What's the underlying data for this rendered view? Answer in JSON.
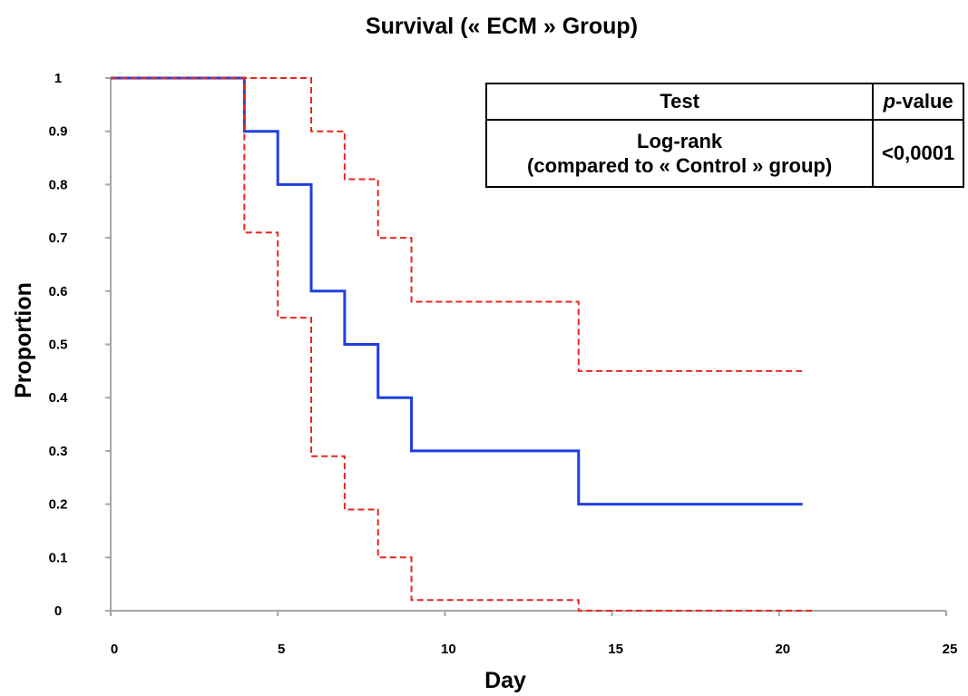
{
  "chart_data": {
    "type": "line",
    "title": "Survival (« ECM » Group)",
    "xlabel": "Day",
    "ylabel": "Proportion",
    "xlim": [
      0,
      25
    ],
    "ylim": [
      0,
      1
    ],
    "x_ticks": [
      0,
      5,
      10,
      15,
      20,
      25
    ],
    "y_ticks": [
      0,
      0.1,
      0.2,
      0.3,
      0.4,
      0.5,
      0.6,
      0.7,
      0.8,
      0.9,
      1
    ],
    "x_tick_labels": [
      "0",
      "5",
      "10",
      "15",
      "20",
      "25"
    ],
    "y_tick_labels": [
      "0",
      "0.1",
      "0.2",
      "0.3",
      "0.4",
      "0.5",
      "0.6",
      "0.7",
      "0.8",
      "0.9",
      "1"
    ],
    "grid": false,
    "series": [
      {
        "style": "step-solid",
        "color": "#1f3fe0",
        "x": [
          0,
          4,
          5,
          6,
          7,
          8,
          9,
          14,
          20.7
        ],
        "y": [
          1,
          0.9,
          0.8,
          0.6,
          0.5,
          0.4,
          0.3,
          0.2,
          0.2
        ]
      },
      {
        "style": "step-dashed",
        "color": "#e8261e",
        "x": [
          0,
          6,
          7,
          8,
          9,
          14,
          20.7
        ],
        "y": [
          1,
          0.9,
          0.81,
          0.7,
          0.58,
          0.45,
          0.45
        ]
      },
      {
        "style": "step-dashed",
        "color": "#e8261e",
        "x": [
          0,
          4,
          5,
          6,
          7,
          8,
          9,
          14,
          21.1
        ],
        "y": [
          1,
          0.71,
          0.55,
          0.29,
          0.19,
          0.1,
          0.02,
          0,
          0
        ]
      }
    ]
  },
  "table": {
    "header_test": "Test",
    "header_p_italic": "p",
    "header_p_rest": "-value",
    "row_test_line1": "Log-rank",
    "row_test_line2": "(compared to « Control » group)",
    "row_pvalue": "<0,0001"
  }
}
